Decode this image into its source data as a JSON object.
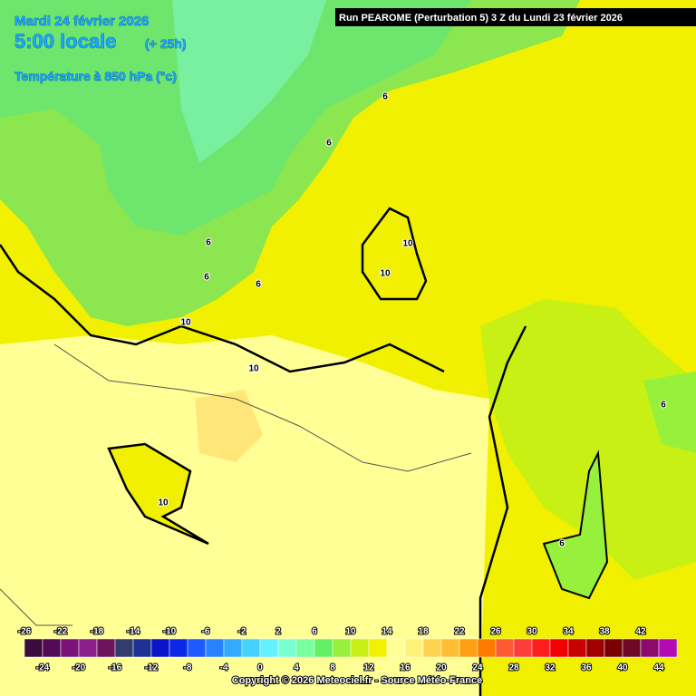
{
  "header": {
    "date": "Mardi 24 février 2026",
    "time": "5:00 locale",
    "lead": "(+ 25h)",
    "parameter": "Température à 850 hPa (°c)",
    "run": "Run PEAROME (Perturbation 5) 3 Z du Lundi 23 février 2026"
  },
  "isotherm_labels": [
    6,
    6,
    6,
    6,
    6,
    6,
    10,
    10,
    10,
    10,
    10,
    6
  ],
  "colorbar": {
    "ticks": [
      -26,
      -24,
      -22,
      -20,
      -18,
      -16,
      -14,
      -12,
      -10,
      -8,
      -6,
      -4,
      -2,
      0,
      2,
      4,
      6,
      8,
      10,
      12,
      14,
      16,
      18,
      20,
      22,
      24,
      26,
      28,
      30,
      32,
      34,
      36,
      38,
      40,
      42,
      44
    ],
    "colors": [
      "#3c0a3c",
      "#550a55",
      "#7a127a",
      "#8c1e8c",
      "#6e145a",
      "#323c6e",
      "#1e3296",
      "#0a14c8",
      "#0a28e6",
      "#1e5aff",
      "#2882ff",
      "#32aaff",
      "#46d2ff",
      "#64f0ff",
      "#78ffd2",
      "#78ffa0",
      "#64f064",
      "#96f03c",
      "#c8f014",
      "#f0f000",
      "#ffff96",
      "#fff078",
      "#ffd250",
      "#ffbe32",
      "#ffa014",
      "#ff7800",
      "#ff5a32",
      "#ff3c3c",
      "#ff1e1e",
      "#f00000",
      "#c80000",
      "#a00000",
      "#780000",
      "#6e0a28",
      "#8c0a6e",
      "#b40ab4",
      "#dc14dc",
      "#f050f0",
      "#f096f0"
    ]
  },
  "footer": {
    "copyright": "Copyright © 2026 Meteociel.fr - Source Météo-France"
  }
}
